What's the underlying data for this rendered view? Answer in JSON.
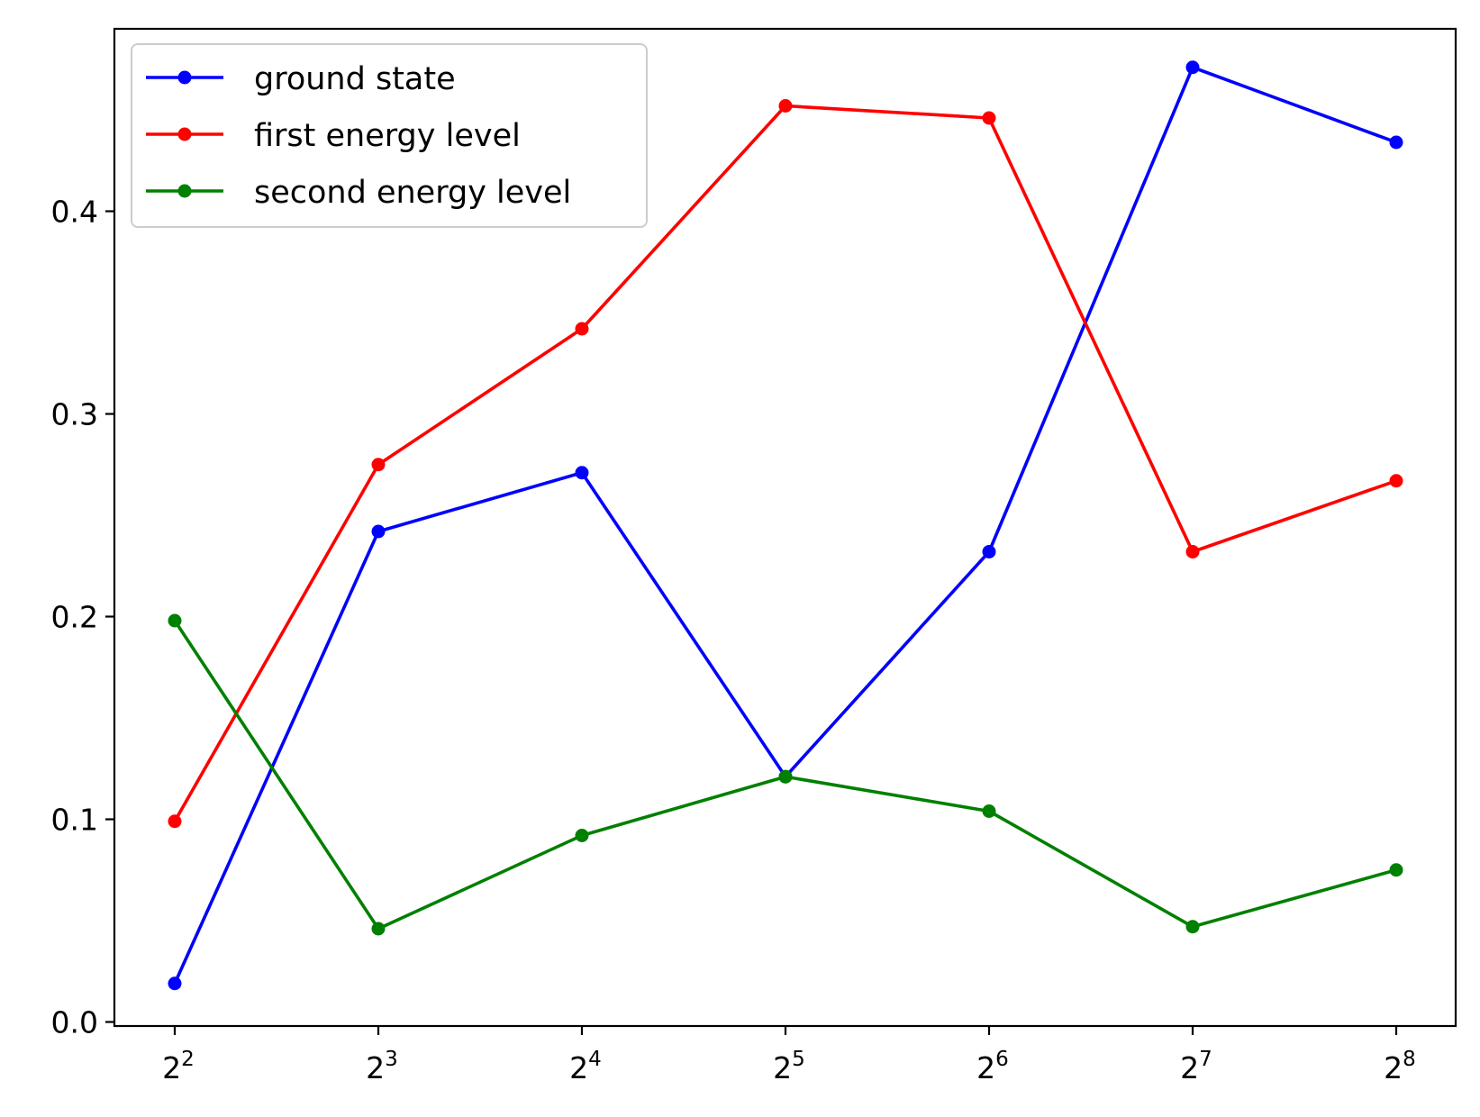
{
  "chart_data": {
    "type": "line",
    "x_scale": "log2",
    "x": [
      4,
      8,
      16,
      32,
      64,
      128,
      256
    ],
    "x_tick_labels": [
      {
        "base": "2",
        "exp": "2"
      },
      {
        "base": "2",
        "exp": "3"
      },
      {
        "base": "2",
        "exp": "4"
      },
      {
        "base": "2",
        "exp": "5"
      },
      {
        "base": "2",
        "exp": "6"
      },
      {
        "base": "2",
        "exp": "7"
      },
      {
        "base": "2",
        "exp": "8"
      }
    ],
    "y_ticks": [
      "0.0",
      "0.1",
      "0.2",
      "0.3",
      "0.4"
    ],
    "ylim": [
      -0.002,
      0.49
    ],
    "grid": false,
    "legend_position": "top-left",
    "series": [
      {
        "name": "ground state",
        "color": "#0000ff",
        "marker": "circle",
        "values": [
          0.019,
          0.242,
          0.271,
          0.121,
          0.232,
          0.471,
          0.434
        ]
      },
      {
        "name": "first energy level",
        "color": "#ff0000",
        "marker": "circle",
        "values": [
          0.099,
          0.275,
          0.342,
          0.452,
          0.446,
          0.232,
          0.267
        ]
      },
      {
        "name": "second energy level",
        "color": "#008000",
        "marker": "circle",
        "values": [
          0.198,
          0.046,
          0.092,
          0.121,
          0.104,
          0.047,
          0.075
        ]
      }
    ]
  }
}
